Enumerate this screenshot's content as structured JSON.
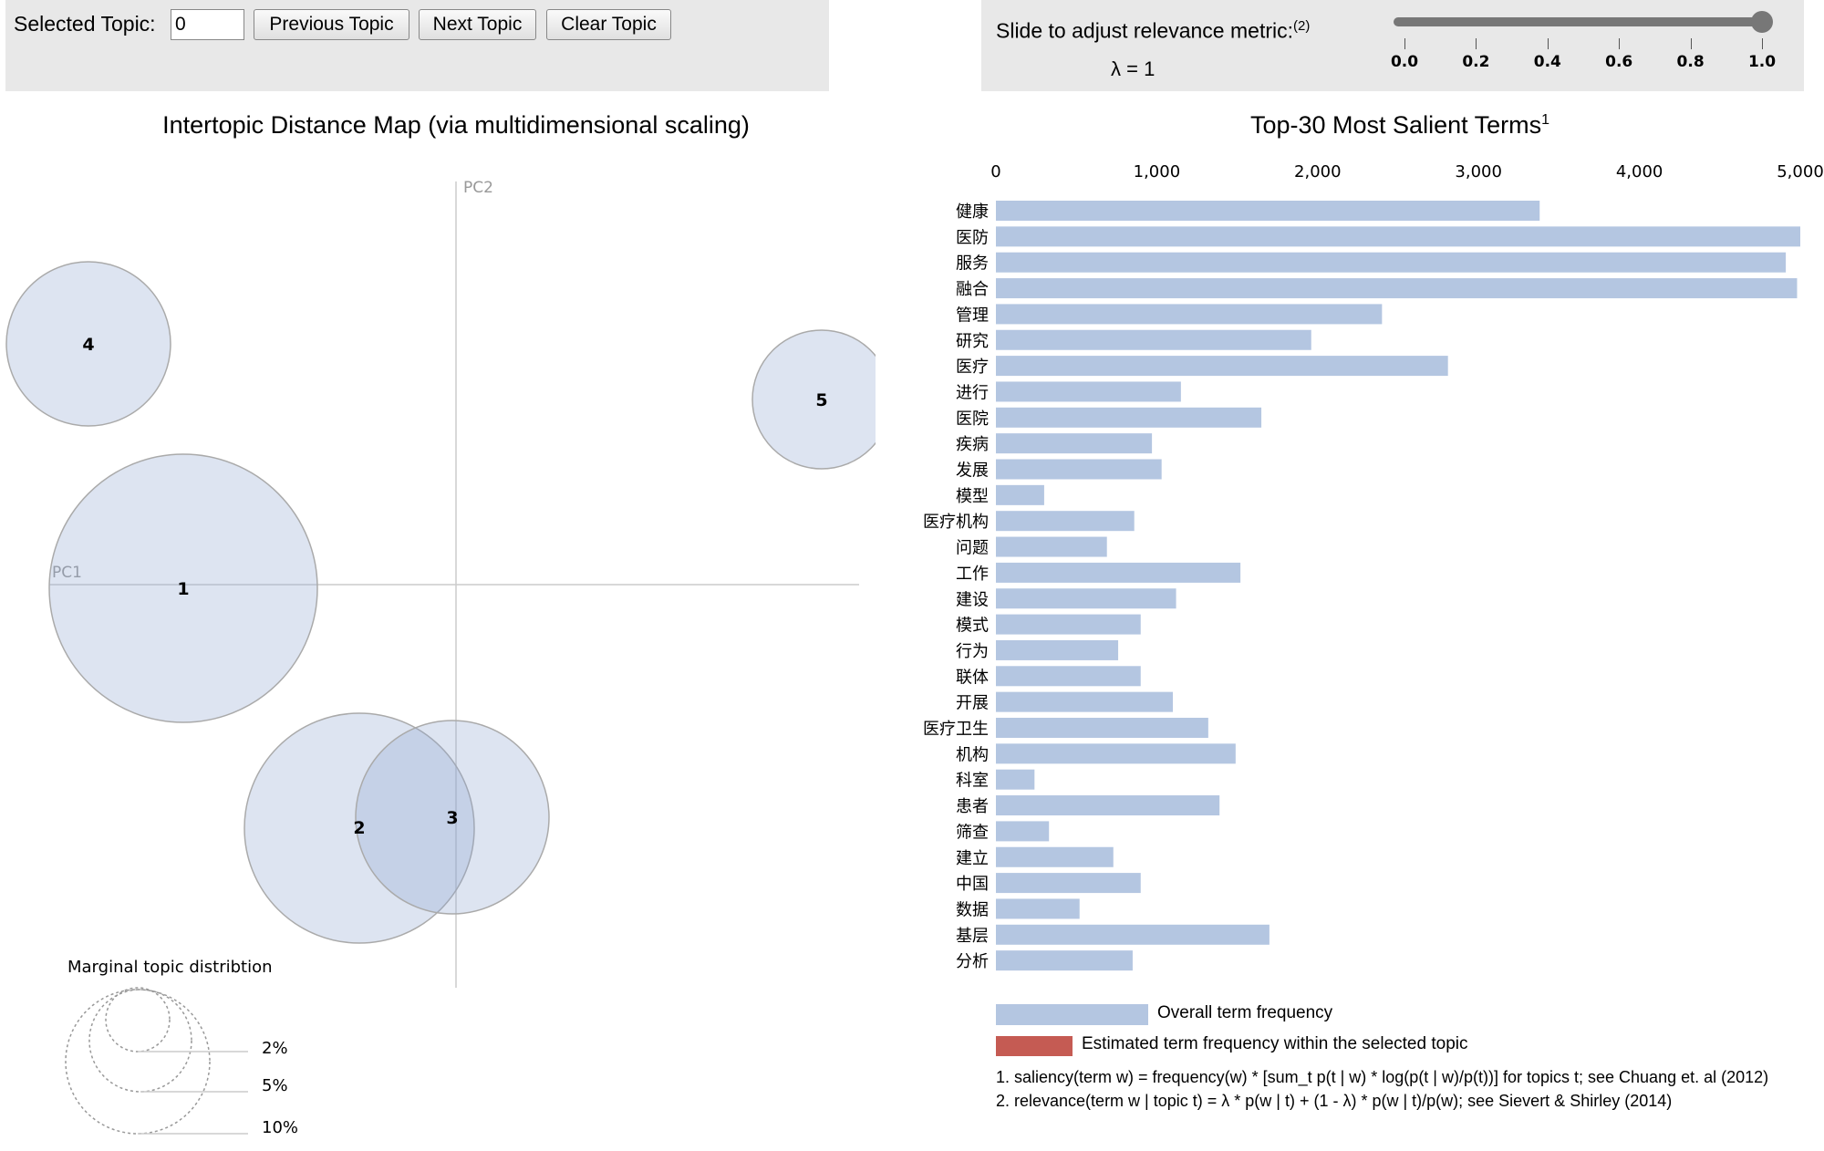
{
  "controls": {
    "selected_topic_label": "Selected Topic:",
    "selected_topic_value": "0",
    "prev_label": "Previous Topic",
    "next_label": "Next Topic",
    "clear_label": "Clear Topic"
  },
  "slider": {
    "label": "Slide to adjust relevance metric:",
    "label_sup": "(2)",
    "lambda_text": "λ = 1",
    "value": 1,
    "min": 0,
    "max": 1,
    "ticks": [
      "0.0",
      "0.2",
      "0.4",
      "0.6",
      "0.8",
      "1.0"
    ]
  },
  "map": {
    "title": "Intertopic Distance Map (via multidimensional scaling)",
    "pc1": "PC1",
    "pc2": "PC2",
    "topics": [
      {
        "id": "1",
        "label": "1"
      },
      {
        "id": "2",
        "label": "2"
      },
      {
        "id": "3",
        "label": "3"
      },
      {
        "id": "4",
        "label": "4"
      },
      {
        "id": "5",
        "label": "5"
      }
    ],
    "marginal": {
      "title": "Marginal topic distribtion",
      "labels": [
        "2%",
        "5%",
        "10%"
      ]
    }
  },
  "chart_data": {
    "type": "bar",
    "title": "Top-30 Most Salient Terms",
    "title_sup": "1",
    "xlim": [
      0,
      5000
    ],
    "ticks": [
      "0",
      "1,000",
      "2,000",
      "3,000",
      "4,000",
      "5,000"
    ],
    "categories": [
      "健康",
      "医防",
      "服务",
      "融合",
      "管理",
      "研究",
      "医疗",
      "进行",
      "医院",
      "疾病",
      "发展",
      "模型",
      "医疗机构",
      "问题",
      "工作",
      "建设",
      "模式",
      "行为",
      "联体",
      "开展",
      "医疗卫生",
      "机构",
      "科室",
      "患者",
      "筛查",
      "建立",
      "中国",
      "数据",
      "基层",
      "分析"
    ],
    "series": [
      {
        "name": "Overall term frequency",
        "color": "#b4c6e1",
        "values": [
          3380,
          5000,
          4910,
          4980,
          2400,
          1960,
          2810,
          1150,
          1650,
          970,
          1030,
          300,
          860,
          690,
          1520,
          1120,
          900,
          760,
          900,
          1100,
          1320,
          1490,
          240,
          1390,
          330,
          730,
          900,
          520,
          1700,
          850
        ]
      }
    ],
    "legend": [
      {
        "label": "Overall term frequency",
        "color": "#b4c6e1"
      },
      {
        "label": "Estimated term frequency within the selected topic",
        "color": "#c55b53"
      }
    ],
    "footnotes": [
      "1. saliency(term w) = frequency(w) * [sum_t p(t | w) * log(p(t | w)/p(t))] for topics t; see Chuang et. al (2012)",
      "2. relevance(term w | topic t) = λ * p(w | t) + (1 - λ) * p(w | t)/p(w); see Sievert & Shirley (2014)"
    ]
  }
}
